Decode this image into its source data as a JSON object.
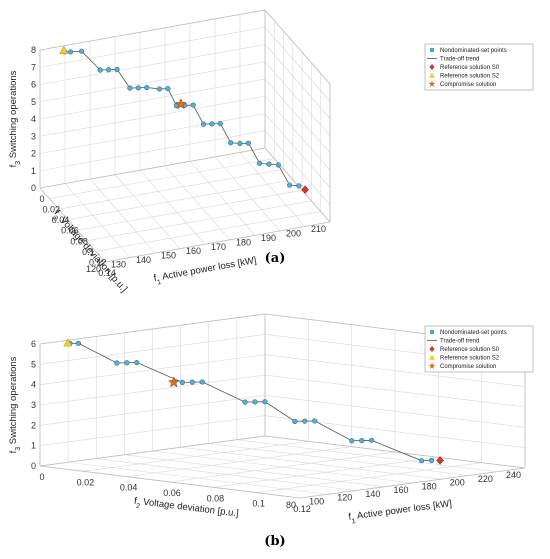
{
  "figure": {
    "panels": [
      {
        "caption": "(a)",
        "zlabel": "f",
        "zlabel_sub": "3",
        "zlabel_rest": " Switching operations",
        "xlabel": "f",
        "xlabel_sub": "1",
        "xlabel_rest": " Active power loss [kW]",
        "ylabel": "f",
        "ylabel_sub": "2",
        "ylabel_rest": " Voltage deviation [p.u.]",
        "legend": [
          {
            "label": "Nondominated-set points",
            "marker": "circle",
            "color": "#5aaed6"
          },
          {
            "label": "Trade-off trend",
            "marker": "line",
            "color": "#555555"
          },
          {
            "label": "Reference solution S0",
            "marker": "diamond",
            "color": "#d23a2a"
          },
          {
            "label": "Reference solution S2",
            "marker": "triangle",
            "color": "#f2cc2e"
          },
          {
            "label": "Compromise solution",
            "marker": "star",
            "color": "#e07020"
          }
        ]
      },
      {
        "caption": "(b)",
        "zlabel": "f",
        "zlabel_sub": "3",
        "zlabel_rest": " Switching operations",
        "xlabel": "f",
        "xlabel_sub": "1",
        "xlabel_rest": " Active power loss [kW]",
        "ylabel": "f",
        "ylabel_sub": "2",
        "ylabel_rest": " Voltage deviation [p.u.]",
        "legend": [
          {
            "label": "Nondominated-set points",
            "marker": "circle",
            "color": "#5aaed6"
          },
          {
            "label": "Trade-off trend",
            "marker": "line",
            "color": "#555555"
          },
          {
            "label": "Reference solution S0",
            "marker": "diamond",
            "color": "#d23a2a"
          },
          {
            "label": "Reference solution S2",
            "marker": "triangle",
            "color": "#f2cc2e"
          },
          {
            "label": "Compromise solution",
            "marker": "star",
            "color": "#e07020"
          }
        ]
      }
    ]
  },
  "chart_data": [
    {
      "type": "scatter",
      "title": "",
      "xlabel": "f1 Active power loss [kW]",
      "ylabel": "f2 Voltage deviation [p.u.]",
      "zlabel": "f3 Switching operations",
      "xticks": [
        120,
        130,
        140,
        150,
        160,
        170,
        180,
        190,
        200,
        210
      ],
      "yticks": [
        0,
        0.02,
        0.04,
        0.06,
        0.08,
        0.1,
        0.12,
        0.14
      ],
      "zticks": [
        0,
        1,
        2,
        3,
        4,
        5,
        6,
        7,
        8
      ],
      "xlim": [
        120,
        210
      ],
      "ylim": [
        0,
        0.14
      ],
      "zlim": [
        0,
        8
      ],
      "grid": true,
      "legend_position": "top-right",
      "series": [
        {
          "name": "Nondominated-set points",
          "points": [
            [
              128,
              0.01,
              8
            ],
            [
              130,
              0.012,
              8
            ],
            [
              134,
              0.014,
              8
            ],
            [
              140,
              0.022,
              7
            ],
            [
              143,
              0.024,
              7
            ],
            [
              146,
              0.026,
              7
            ],
            [
              150,
              0.032,
              6
            ],
            [
              153,
              0.034,
              6
            ],
            [
              156,
              0.036,
              6
            ],
            [
              160,
              0.042,
              6
            ],
            [
              163,
              0.044,
              6
            ],
            [
              166,
              0.046,
              5
            ],
            [
              169,
              0.048,
              5
            ],
            [
              172,
              0.05,
              5
            ],
            [
              175,
              0.056,
              4
            ],
            [
              178,
              0.058,
              4
            ],
            [
              181,
              0.06,
              4
            ],
            [
              184,
              0.066,
              3
            ],
            [
              187,
              0.07,
              3
            ],
            [
              190,
              0.072,
              3
            ],
            [
              193,
              0.08,
              2
            ],
            [
              196,
              0.084,
              2
            ],
            [
              199,
              0.088,
              2
            ],
            [
              202,
              0.096,
              1
            ],
            [
              205,
              0.1,
              1
            ]
          ]
        },
        {
          "name": "Reference solution S0",
          "points": [
            [
              206,
              0.108,
              1
            ]
          ]
        },
        {
          "name": "Reference solution S2",
          "points": [
            [
              128,
              0.008,
              8
            ]
          ]
        },
        {
          "name": "Compromise solution",
          "points": [
            [
              168,
              0.045,
              5
            ]
          ]
        }
      ]
    },
    {
      "type": "scatter",
      "title": "",
      "xlabel": "f1 Active power loss [kW]",
      "ylabel": "f2 Voltage deviation [p.u.]",
      "zlabel": "f3 Switching operations",
      "xticks": [
        80,
        100,
        120,
        140,
        160,
        180,
        200,
        220,
        240
      ],
      "yticks": [
        0,
        0.02,
        0.04,
        0.06,
        0.08,
        0.1,
        0.12
      ],
      "zticks": [
        0,
        1,
        2,
        3,
        4,
        5,
        6
      ],
      "xlim": [
        80,
        240
      ],
      "ylim": [
        0,
        0.12
      ],
      "zlim": [
        0,
        6
      ],
      "grid": true,
      "legend_position": "top-right",
      "series": [
        {
          "name": "Nondominated-set points",
          "points": [
            [
              92,
              0.006,
              6
            ],
            [
              95,
              0.008,
              6
            ],
            [
              110,
              0.016,
              5
            ],
            [
              114,
              0.018,
              5
            ],
            [
              118,
              0.02,
              5
            ],
            [
              135,
              0.03,
              4
            ],
            [
              139,
              0.032,
              4
            ],
            [
              143,
              0.034,
              4
            ],
            [
              158,
              0.044,
              3
            ],
            [
              162,
              0.046,
              3
            ],
            [
              166,
              0.048,
              3
            ],
            [
              178,
              0.054,
              2
            ],
            [
              182,
              0.056,
              2
            ],
            [
              186,
              0.058,
              2
            ],
            [
              200,
              0.066,
              1
            ],
            [
              204,
              0.068,
              1
            ],
            [
              208,
              0.07,
              1
            ],
            [
              225,
              0.082,
              0
            ],
            [
              229,
              0.084,
              0
            ]
          ]
        },
        {
          "name": "Reference solution S0",
          "points": [
            [
              232,
              0.086,
              0
            ]
          ]
        },
        {
          "name": "Reference solution S2",
          "points": [
            [
              92,
              0.005,
              6
            ]
          ]
        },
        {
          "name": "Compromise solution",
          "points": [
            [
              132,
              0.028,
              4
            ]
          ]
        }
      ]
    }
  ]
}
